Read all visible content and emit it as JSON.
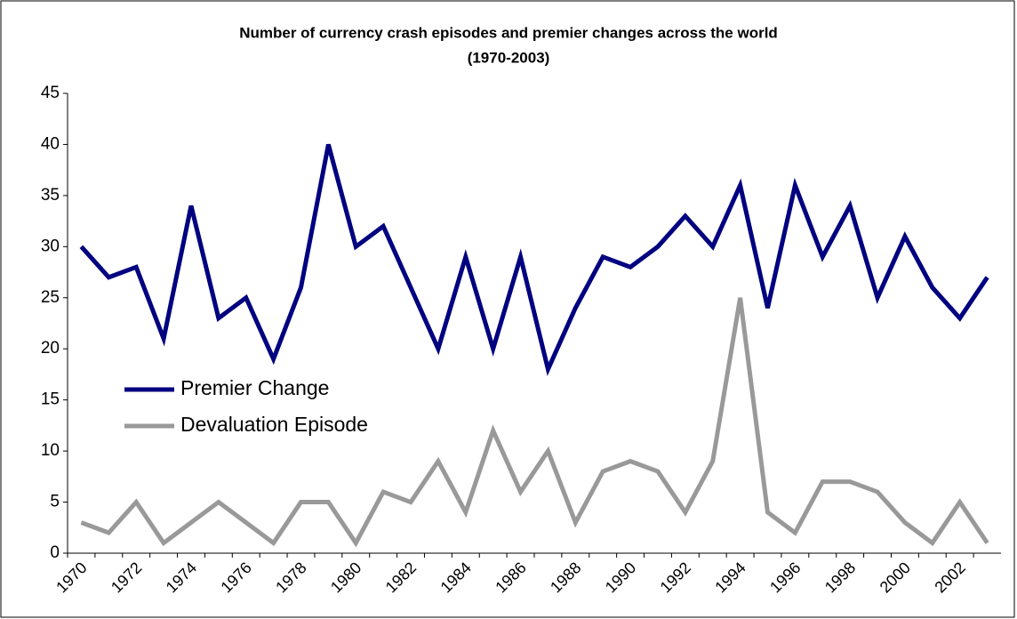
{
  "chart_data": {
    "type": "line",
    "title": "Number of currency crash episodes and premier changes across the world",
    "subtitle": "(1970-2003)",
    "categories": [
      "1970",
      null,
      "1972",
      null,
      "1974",
      null,
      "1976",
      null,
      "1978",
      null,
      "1980",
      null,
      "1982",
      null,
      "1984",
      null,
      "1986",
      null,
      "1988",
      null,
      "1990",
      null,
      "1992",
      null,
      "1994",
      null,
      "1996",
      null,
      "1998",
      null,
      "2000",
      null,
      "2002",
      null
    ],
    "series": [
      {
        "name": "Premier Change",
        "color": "#000080",
        "values": [
          30,
          27,
          28,
          21,
          34,
          23,
          25,
          19,
          26,
          40,
          30,
          32,
          26,
          20,
          29,
          20,
          29,
          18,
          24,
          29,
          28,
          30,
          33,
          30,
          36,
          24,
          36,
          29,
          34,
          25,
          31,
          26,
          23,
          27
        ]
      },
      {
        "name": "Devaluation Episode",
        "color": "#999999",
        "values": [
          3,
          2,
          5,
          1,
          3,
          5,
          3,
          1,
          5,
          5,
          1,
          6,
          5,
          9,
          4,
          12,
          6,
          10,
          3,
          8,
          9,
          8,
          4,
          9,
          25,
          4,
          2,
          7,
          7,
          6,
          3,
          1,
          5,
          1
        ]
      }
    ],
    "ylim": [
      0,
      45
    ],
    "yticks": [
      0,
      5,
      10,
      15,
      20,
      25,
      30,
      35,
      40,
      45
    ],
    "grid": false,
    "legend": "left"
  }
}
